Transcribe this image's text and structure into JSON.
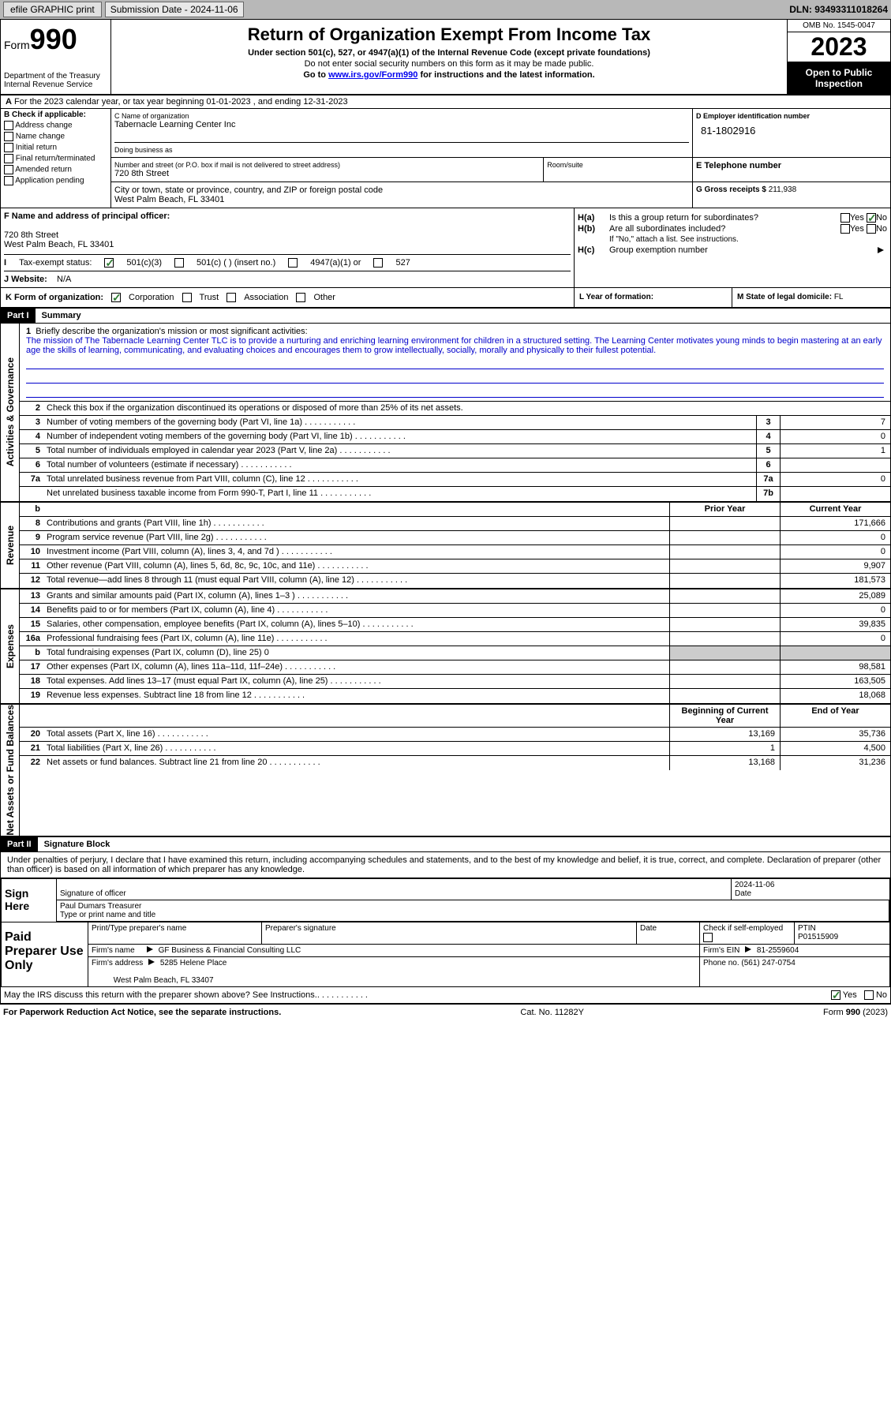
{
  "topbar": {
    "efile": "efile GRAPHIC print",
    "submission_label": "Submission Date - 2024-11-06",
    "dln": "DLN: 93493311018264"
  },
  "header": {
    "form_word": "Form",
    "form_num": "990",
    "title": "Return of Organization Exempt From Income Tax",
    "sub1": "Under section 501(c), 527, or 4947(a)(1) of the Internal Revenue Code (except private foundations)",
    "sub2": "Do not enter social security numbers on this form as it may be made public.",
    "sub3": "Go to www.irs.gov/Form990 for instructions and the latest information.",
    "dept": "Department of the Treasury Internal Revenue Service",
    "omb": "OMB No. 1545-0047",
    "year": "2023",
    "inspection": "Open to Public Inspection"
  },
  "lineA": {
    "text": "For the 2023 calendar year, or tax year beginning 01-01-2023    , and ending 12-31-2023"
  },
  "boxB": {
    "label": "B Check if applicable:",
    "opts": [
      "Address change",
      "Name change",
      "Initial return",
      "Final return/terminated",
      "Amended return",
      "Application pending"
    ]
  },
  "boxC": {
    "name_lbl": "C Name of organization",
    "name": "Tabernacle Learning Center Inc",
    "dba_lbl": "Doing business as",
    "addr_lbl": "Number and street (or P.O. box if mail is not delivered to street address)",
    "addr": "720 8th Street",
    "room_lbl": "Room/suite",
    "city_lbl": "City or town, state or province, country, and ZIP or foreign postal code",
    "city": "West Palm Beach, FL  33401"
  },
  "boxD": {
    "lbl": "D Employer identification number",
    "val": "81-1802916"
  },
  "boxE": {
    "lbl": "E Telephone number",
    "val": ""
  },
  "boxG": {
    "lbl": "G Gross receipts $",
    "val": "211,938"
  },
  "boxF": {
    "lbl": "F Name and address of principal officer:",
    "addr1": "720 8th Street",
    "addr2": "West Palm Beach, FL  33401"
  },
  "boxH": {
    "a_lbl": "H(a)",
    "a_q": "Is this a group return for subordinates?",
    "a_yes": "Yes",
    "a_no": "No",
    "a_checked": "No",
    "b_lbl": "H(b)",
    "b_q": "Are all subordinates included?",
    "b_note": "If \"No,\" attach a list. See instructions.",
    "c_lbl": "H(c)",
    "c_q": "Group exemption number"
  },
  "rowI": {
    "lbl": "Tax-exempt status:",
    "opt1": "501(c)(3)",
    "opt2": "501(c) (  ) (insert no.)",
    "opt3": "4947(a)(1) or",
    "opt4": "527"
  },
  "rowJ": {
    "lbl": "J   Website:",
    "val": "N/A"
  },
  "rowK": {
    "lbl": "K Form of organization:",
    "opts": [
      "Corporation",
      "Trust",
      "Association",
      "Other"
    ]
  },
  "rowL": {
    "lbl": "L Year of formation:",
    "val": ""
  },
  "rowM": {
    "lbl": "M State of legal domicile:",
    "val": "FL"
  },
  "part1": {
    "header": "Part I",
    "title": "Summary",
    "mission_lbl": "Briefly describe the organization's mission or most significant activities:",
    "mission": "The mission of The Tabernacle Learning Center TLC is to provide a nurturing and enriching learning environment for children in a structured setting. The Learning Center motivates young minds to begin mastering at an early age the skills of learning, communicating, and evaluating choices and encourages them to grow intellectually, socially, morally and physically to their fullest potential.",
    "line2": "Check this box       if the organization discontinued its operations or disposed of more than 25% of its net assets."
  },
  "governance": {
    "side": "Activities & Governance",
    "rows": [
      {
        "n": "3",
        "d": "Number of voting members of the governing body (Part VI, line 1a)",
        "r": "3",
        "v": "7"
      },
      {
        "n": "4",
        "d": "Number of independent voting members of the governing body (Part VI, line 1b)",
        "r": "4",
        "v": "0"
      },
      {
        "n": "5",
        "d": "Total number of individuals employed in calendar year 2023 (Part V, line 2a)",
        "r": "5",
        "v": "1"
      },
      {
        "n": "6",
        "d": "Total number of volunteers (estimate if necessary)",
        "r": "6",
        "v": ""
      },
      {
        "n": "7a",
        "d": "Total unrelated business revenue from Part VIII, column (C), line 12",
        "r": "7a",
        "v": "0"
      },
      {
        "n": "",
        "d": "Net unrelated business taxable income from Form 990-T, Part I, line 11",
        "r": "7b",
        "v": ""
      }
    ]
  },
  "revenue": {
    "side": "Revenue",
    "head_prior": "Prior Year",
    "head_current": "Current Year",
    "rows": [
      {
        "n": "8",
        "d": "Contributions and grants (Part VIII, line 1h)",
        "p": "",
        "c": "171,666"
      },
      {
        "n": "9",
        "d": "Program service revenue (Part VIII, line 2g)",
        "p": "",
        "c": "0"
      },
      {
        "n": "10",
        "d": "Investment income (Part VIII, column (A), lines 3, 4, and 7d )",
        "p": "",
        "c": "0"
      },
      {
        "n": "11",
        "d": "Other revenue (Part VIII, column (A), lines 5, 6d, 8c, 9c, 10c, and 11e)",
        "p": "",
        "c": "9,907"
      },
      {
        "n": "12",
        "d": "Total revenue—add lines 8 through 11 (must equal Part VIII, column (A), line 12)",
        "p": "",
        "c": "181,573"
      }
    ]
  },
  "expenses": {
    "side": "Expenses",
    "rows": [
      {
        "n": "13",
        "d": "Grants and similar amounts paid (Part IX, column (A), lines 1–3 )",
        "p": "",
        "c": "25,089"
      },
      {
        "n": "14",
        "d": "Benefits paid to or for members (Part IX, column (A), line 4)",
        "p": "",
        "c": "0"
      },
      {
        "n": "15",
        "d": "Salaries, other compensation, employee benefits (Part IX, column (A), lines 5–10)",
        "p": "",
        "c": "39,835"
      },
      {
        "n": "16a",
        "d": "Professional fundraising fees (Part IX, column (A), line 11e)",
        "p": "",
        "c": "0"
      },
      {
        "n": "b",
        "d": "Total fundraising expenses (Part IX, column (D), line 25) 0",
        "p": null,
        "c": null
      },
      {
        "n": "17",
        "d": "Other expenses (Part IX, column (A), lines 11a–11d, 11f–24e)",
        "p": "",
        "c": "98,581"
      },
      {
        "n": "18",
        "d": "Total expenses. Add lines 13–17 (must equal Part IX, column (A), line 25)",
        "p": "",
        "c": "163,505"
      },
      {
        "n": "19",
        "d": "Revenue less expenses. Subtract line 18 from line 12",
        "p": "",
        "c": "18,068"
      }
    ]
  },
  "netassets": {
    "side": "Net Assets or Fund Balances",
    "head_begin": "Beginning of Current Year",
    "head_end": "End of Year",
    "rows": [
      {
        "n": "20",
        "d": "Total assets (Part X, line 16)",
        "p": "13,169",
        "c": "35,736"
      },
      {
        "n": "21",
        "d": "Total liabilities (Part X, line 26)",
        "p": "1",
        "c": "4,500"
      },
      {
        "n": "22",
        "d": "Net assets or fund balances. Subtract line 21 from line 20",
        "p": "13,168",
        "c": "31,236"
      }
    ]
  },
  "part2": {
    "header": "Part II",
    "title": "Signature Block",
    "declaration": "Under penalties of perjury, I declare that I have examined this return, including accompanying schedules and statements, and to the best of my knowledge and belief, it is true, correct, and complete. Declaration of preparer (other than officer) is based on all information of which preparer has any knowledge."
  },
  "sign": {
    "lbl": "Sign Here",
    "sig_lbl": "Signature of officer",
    "date_lbl": "Date",
    "date": "2024-11-06",
    "name": "Paul Dumars Treasurer",
    "name_lbl": "Type or print name and title"
  },
  "paid": {
    "lbl": "Paid Preparer Use Only",
    "col1": "Print/Type preparer's name",
    "col2": "Preparer's signature",
    "col3": "Date",
    "col4_lbl": "Check         if self-employed",
    "col5_lbl": "PTIN",
    "col5": "P01515909",
    "firm_name_lbl": "Firm's name",
    "firm_name": "GF Business & Financial Consulting LLC",
    "firm_ein_lbl": "Firm's EIN",
    "firm_ein": "81-2559604",
    "firm_addr_lbl": "Firm's address",
    "firm_addr1": "5285 Helene Place",
    "firm_addr2": "West Palm Beach, FL  33407",
    "phone_lbl": "Phone no.",
    "phone": "(561) 247-0754"
  },
  "discuss": {
    "q": "May the IRS discuss this return with the preparer shown above? See Instructions.",
    "yes": "Yes",
    "no": "No"
  },
  "footer": {
    "pra": "For Paperwork Reduction Act Notice, see the separate instructions.",
    "cat": "Cat. No. 11282Y",
    "form": "Form 990 (2023)"
  },
  "colors": {
    "link": "#0000ee",
    "mission": "#0000cc",
    "check": "#2e7d32",
    "topbar_bg": "#b8b8b8"
  }
}
